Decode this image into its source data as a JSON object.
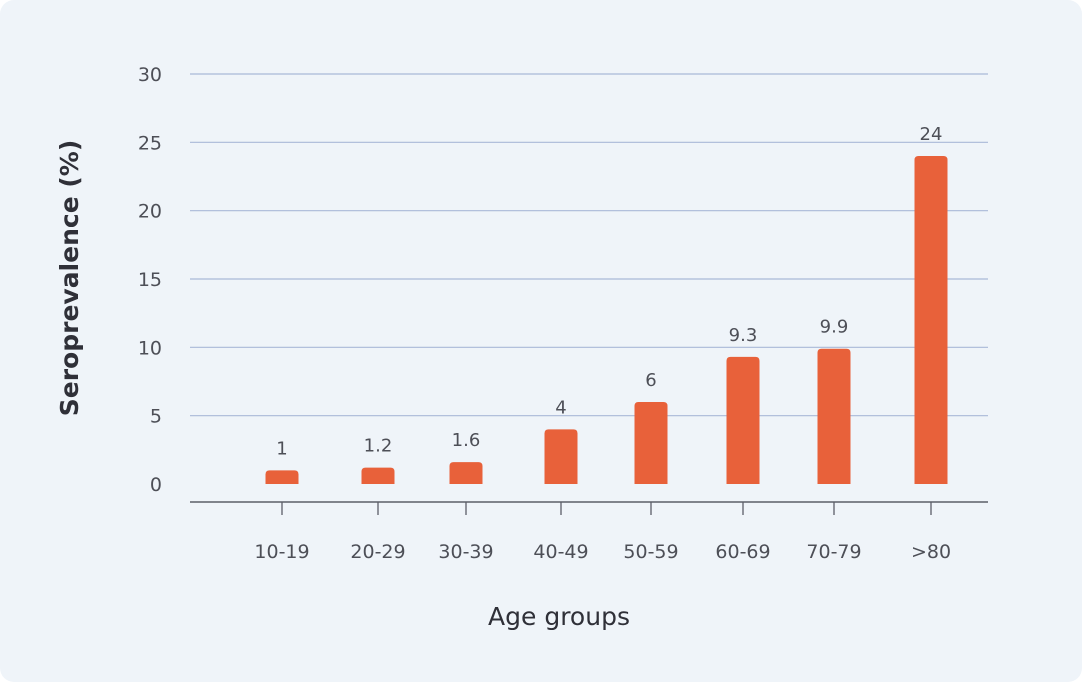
{
  "chart_data": {
    "type": "bar",
    "title": "",
    "xlabel": "Age groups",
    "ylabel": "Seroprevalence (%)",
    "categories": [
      "10-19",
      "20-29",
      "30-39",
      "40-49",
      "50-59",
      "60-69",
      "70-79",
      ">80"
    ],
    "values": [
      1,
      1.2,
      1.6,
      4,
      6,
      9.3,
      9.9,
      24
    ],
    "value_labels": [
      "1",
      "1.2",
      "1.6",
      "4",
      "6",
      "9.3",
      "9.9",
      "24"
    ],
    "y_ticks": [
      "0",
      "5",
      "10",
      "15",
      "20",
      "25",
      "30"
    ],
    "ylim": [
      0,
      30
    ],
    "grid": true,
    "legend": "none",
    "colors": {
      "bar": "#e8613a",
      "grid": "#a9b9d8",
      "axis": "#5b5e68",
      "background": "#eff4f9"
    }
  }
}
